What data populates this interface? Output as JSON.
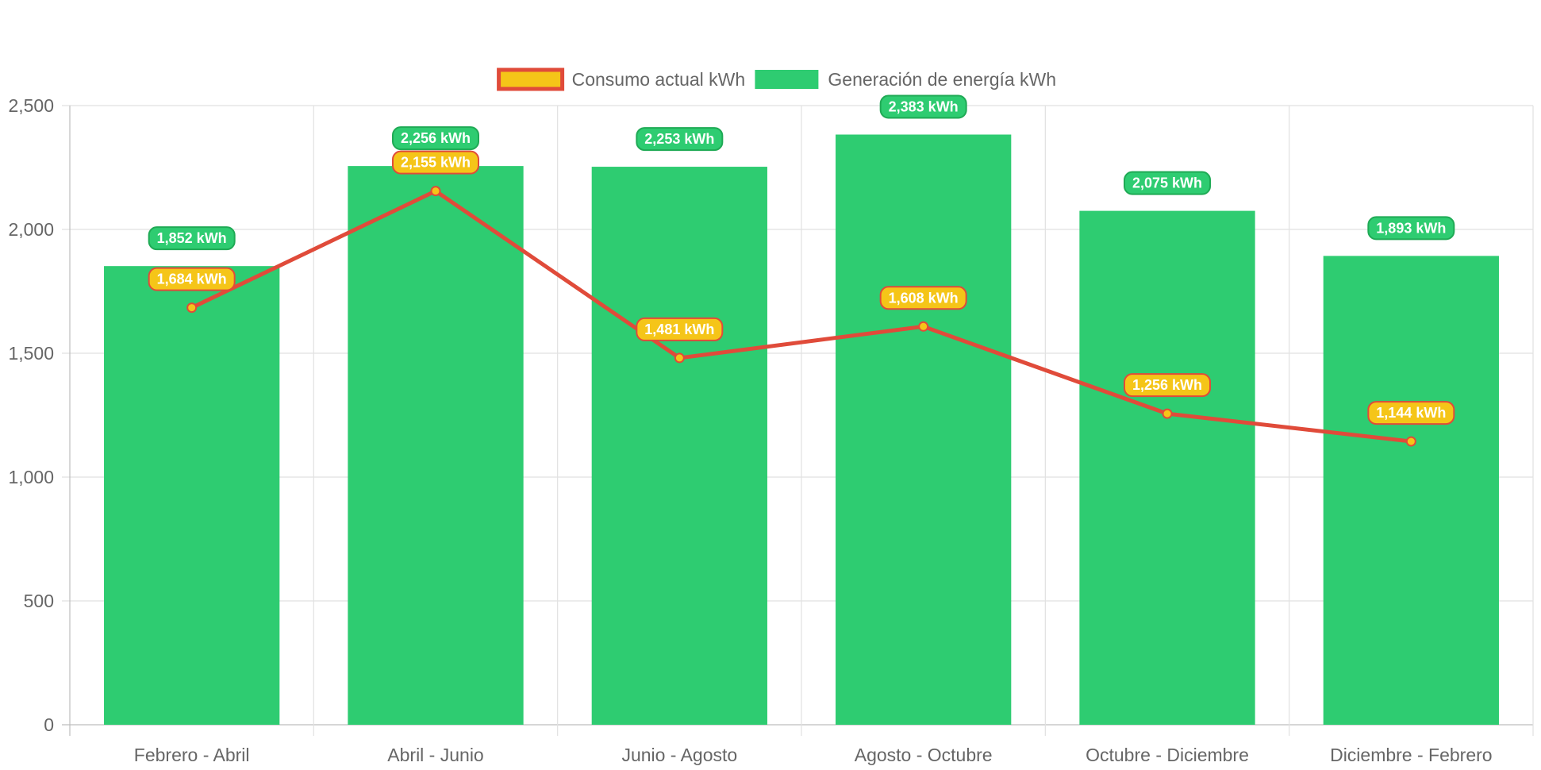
{
  "chart_data": {
    "type": "bar",
    "categories": [
      "Febrero - Abril",
      "Abril - Junio",
      "Junio - Agosto",
      "Agosto - Octubre",
      "Octubre - Diciembre",
      "Diciembre - Febrero"
    ],
    "series": [
      {
        "name": "Consumo actual kWh",
        "type": "line",
        "values": [
          1684,
          2155,
          1481,
          1608,
          1256,
          1144
        ],
        "labels": [
          "1,684 kWh",
          "2,155 kWh",
          "1,481 kWh",
          "1,608 kWh",
          "1,256 kWh",
          "1,144 kWh"
        ],
        "color": "#e04b3a",
        "fill": "#f5c518"
      },
      {
        "name": "Generación de energía kWh",
        "type": "bar",
        "values": [
          1852,
          2256,
          2253,
          2383,
          2075,
          1893
        ],
        "labels": [
          "1,852 kWh",
          "2,256 kWh",
          "2,253 kWh",
          "2,383 kWh",
          "2,075 kWh",
          "1,893 kWh"
        ],
        "color": "#2ecc71",
        "label_fill": "#2ecc71",
        "label_border": "#1faa55"
      }
    ],
    "y_ticks": [
      "0",
      "500",
      "1,000",
      "1,500",
      "2,000",
      "2,500"
    ],
    "ylim": [
      0,
      2500
    ],
    "grid": true,
    "legend_position": "top",
    "xlabel": "",
    "ylabel": ""
  }
}
